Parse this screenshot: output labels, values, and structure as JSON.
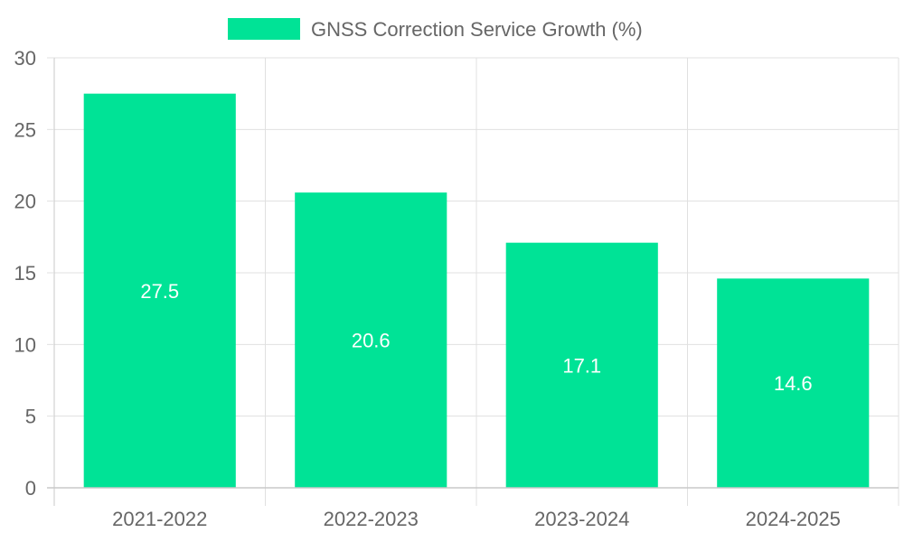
{
  "chart_data": {
    "type": "bar",
    "categories": [
      "2021-2022",
      "2022-2023",
      "2023-2024",
      "2024-2025"
    ],
    "series": [
      {
        "name": "GNSS Correction Service Growth (%)",
        "values": [
          27.5,
          20.6,
          17.1,
          14.6
        ],
        "color": "#00e396"
      }
    ],
    "data_labels": [
      "27.5",
      "20.6",
      "17.1",
      "14.6"
    ],
    "yticks": [
      "0",
      "5",
      "10",
      "15",
      "20",
      "25",
      "30"
    ],
    "ylim": [
      0,
      30
    ],
    "legend_position": "top-center",
    "grid": true,
    "colors": {
      "grid": "#e0e0e0",
      "axis": "#c8c8c8",
      "text": "#666666",
      "label": "#ffffff"
    }
  }
}
